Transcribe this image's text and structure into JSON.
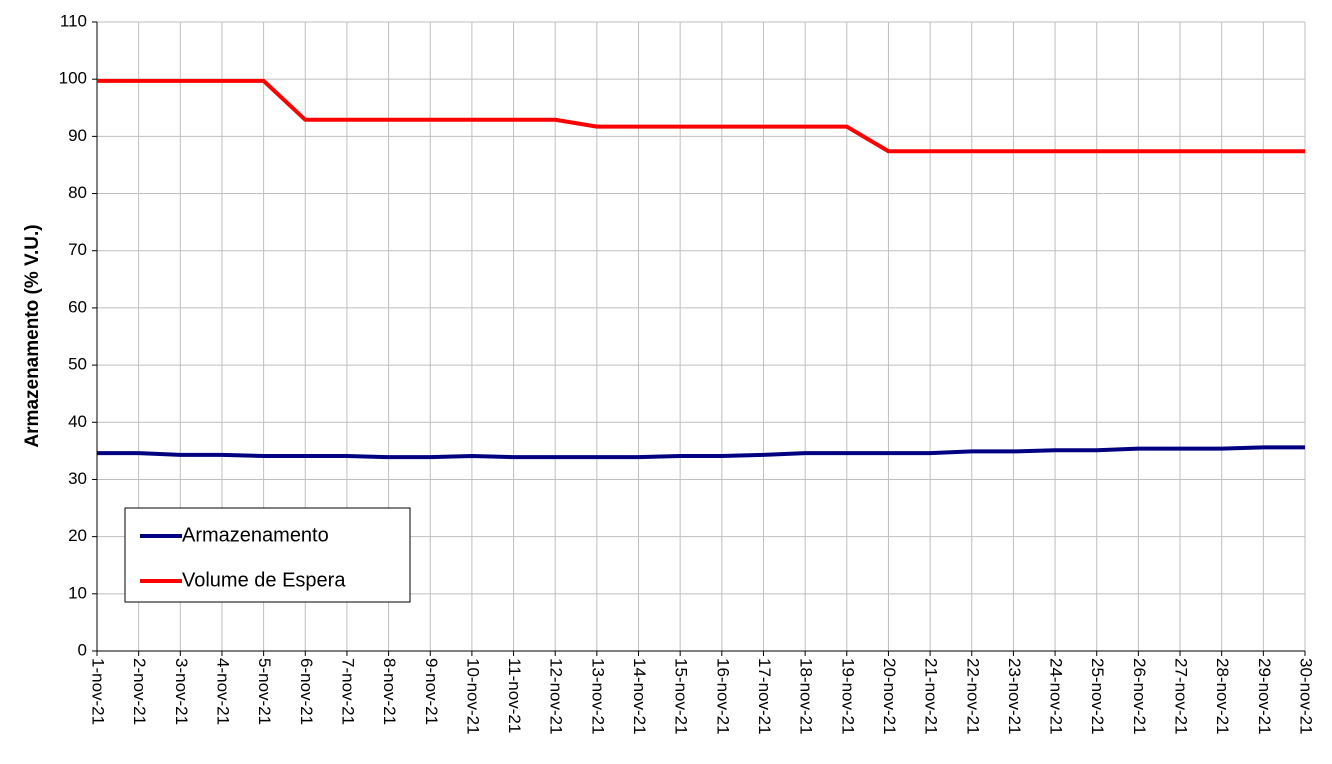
{
  "chart_data": {
    "type": "line",
    "y_label": "Armazenamento (% V.U.)",
    "categories": [
      "1-nov-21",
      "2-nov-21",
      "3-nov-21",
      "4-nov-21",
      "5-nov-21",
      "6-nov-21",
      "7-nov-21",
      "8-nov-21",
      "9-nov-21",
      "10-nov-21",
      "11-nov-21",
      "12-nov-21",
      "13-nov-21",
      "14-nov-21",
      "15-nov-21",
      "16-nov-21",
      "17-nov-21",
      "18-nov-21",
      "19-nov-21",
      "20-nov-21",
      "21-nov-21",
      "22-nov-21",
      "23-nov-21",
      "24-nov-21",
      "25-nov-21",
      "26-nov-21",
      "27-nov-21",
      "28-nov-21",
      "29-nov-21",
      "30-nov-21"
    ],
    "series": [
      {
        "name": "Armazenamento",
        "color": "#000080",
        "values": [
          34.6,
          34.6,
          34.3,
          34.3,
          34.1,
          34.1,
          34.1,
          33.9,
          33.9,
          34.1,
          33.9,
          33.9,
          33.9,
          33.9,
          34.1,
          34.1,
          34.3,
          34.6,
          34.6,
          34.6,
          34.6,
          34.9,
          34.9,
          35.1,
          35.1,
          35.4,
          35.4,
          35.4,
          35.6,
          35.6
        ]
      },
      {
        "name": "Volume de Espera",
        "color": "#ff0000",
        "values": [
          99.7,
          99.7,
          99.7,
          99.7,
          99.7,
          92.9,
          92.9,
          92.9,
          92.9,
          92.9,
          92.9,
          92.9,
          91.7,
          91.7,
          91.7,
          91.7,
          91.7,
          91.7,
          91.7,
          87.4,
          87.4,
          87.4,
          87.4,
          87.4,
          87.4,
          87.4,
          87.4,
          87.4,
          87.4,
          87.4
        ]
      }
    ],
    "ylim": [
      0,
      110
    ],
    "yticks": [
      0,
      10,
      20,
      30,
      40,
      50,
      60,
      70,
      80,
      90,
      100,
      110
    ],
    "grid": true
  }
}
